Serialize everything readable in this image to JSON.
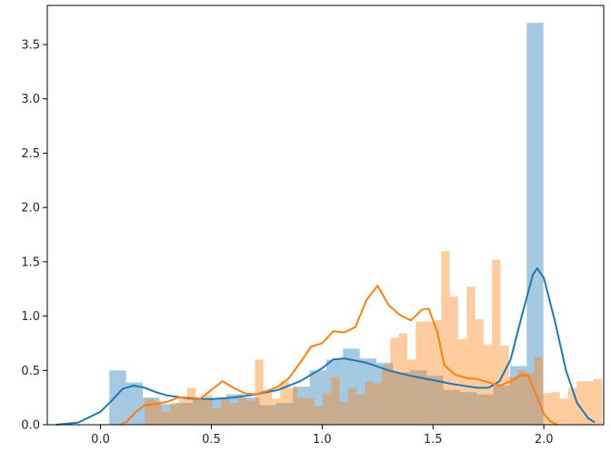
{
  "chart_data": {
    "type": "histogram+kde",
    "xlim": [
      -0.24,
      2.27
    ],
    "ylim": [
      0,
      3.86
    ],
    "x_ticks": [
      0.0,
      0.5,
      1.0,
      1.5,
      2.0
    ],
    "x_tick_labels": [
      "0.0",
      "0.5",
      "1.0",
      "1.5",
      "2.0"
    ],
    "y_ticks": [
      0.0,
      0.5,
      1.0,
      1.5,
      2.0,
      2.5,
      3.0,
      3.5
    ],
    "y_tick_labels": [
      "0.0",
      "0.5",
      "1.0",
      "1.5",
      "2.0",
      "2.5",
      "3.0",
      "3.5"
    ],
    "grid": false,
    "series": [
      {
        "color": "#1f77b4",
        "hist_alpha": 0.4,
        "bin_start": 0.04,
        "bin_width": 0.0753,
        "bin_heights": [
          0.5,
          0.39,
          0.25,
          0.19,
          0.2,
          0.23,
          0.24,
          0.28,
          0.25,
          0.18,
          0.2,
          0.35,
          0.5,
          0.6,
          0.7,
          0.61,
          0.57,
          0.48,
          0.5,
          0.45,
          0.32,
          0.3,
          0.28,
          0.36,
          0.54,
          3.7
        ],
        "kde": [
          [
            -0.2,
            0.0
          ],
          [
            -0.1,
            0.02
          ],
          [
            0.0,
            0.12
          ],
          [
            0.05,
            0.22
          ],
          [
            0.1,
            0.33
          ],
          [
            0.15,
            0.36
          ],
          [
            0.2,
            0.34
          ],
          [
            0.25,
            0.3
          ],
          [
            0.3,
            0.27
          ],
          [
            0.4,
            0.24
          ],
          [
            0.5,
            0.235
          ],
          [
            0.6,
            0.25
          ],
          [
            0.7,
            0.28
          ],
          [
            0.8,
            0.32
          ],
          [
            0.9,
            0.4
          ],
          [
            1.0,
            0.52
          ],
          [
            1.05,
            0.6
          ],
          [
            1.1,
            0.61
          ],
          [
            1.2,
            0.57
          ],
          [
            1.3,
            0.5
          ],
          [
            1.4,
            0.45
          ],
          [
            1.5,
            0.41
          ],
          [
            1.6,
            0.37
          ],
          [
            1.7,
            0.34
          ],
          [
            1.75,
            0.34
          ],
          [
            1.8,
            0.4
          ],
          [
            1.85,
            0.6
          ],
          [
            1.9,
            1.0
          ],
          [
            1.95,
            1.38
          ],
          [
            1.97,
            1.44
          ],
          [
            2.0,
            1.35
          ],
          [
            2.05,
            0.95
          ],
          [
            2.1,
            0.5
          ],
          [
            2.15,
            0.2
          ],
          [
            2.2,
            0.06
          ],
          [
            2.23,
            0.02
          ]
        ]
      },
      {
        "color": "#ff7f0e",
        "hist_alpha": 0.4,
        "bin_start": 0.2,
        "bin_width": 0.0382,
        "bin_heights": [
          0.24,
          0.22,
          0.12,
          0.2,
          0.24,
          0.34,
          0.23,
          0.27,
          0.15,
          0.24,
          0.2,
          0.25,
          0.22,
          0.6,
          0.3,
          0.24,
          0.4,
          0.34,
          0.25,
          0.24,
          0.17,
          0.29,
          0.44,
          0.21,
          0.34,
          0.28,
          0.4,
          0.38,
          0.55,
          0.8,
          0.84,
          0.6,
          0.95,
          0.95,
          0.96,
          1.6,
          1.18,
          0.79,
          1.27,
          0.97,
          0.74,
          1.52,
          0.73,
          0.44,
          0.5,
          0.48,
          0.62,
          0.29,
          0.3,
          0.24,
          0.34,
          0.4,
          0.4,
          0.42
        ],
        "kde": [
          [
            0.09,
            0.0
          ],
          [
            0.12,
            0.03
          ],
          [
            0.16,
            0.12
          ],
          [
            0.2,
            0.18
          ],
          [
            0.25,
            0.19
          ],
          [
            0.3,
            0.21
          ],
          [
            0.35,
            0.25
          ],
          [
            0.4,
            0.25
          ],
          [
            0.45,
            0.24
          ],
          [
            0.5,
            0.32
          ],
          [
            0.55,
            0.4
          ],
          [
            0.6,
            0.34
          ],
          [
            0.65,
            0.29
          ],
          [
            0.7,
            0.28
          ],
          [
            0.75,
            0.31
          ],
          [
            0.8,
            0.35
          ],
          [
            0.85,
            0.43
          ],
          [
            0.9,
            0.57
          ],
          [
            0.95,
            0.72
          ],
          [
            1.0,
            0.75
          ],
          [
            1.05,
            0.86
          ],
          [
            1.1,
            0.85
          ],
          [
            1.15,
            0.9
          ],
          [
            1.2,
            1.15
          ],
          [
            1.25,
            1.28
          ],
          [
            1.3,
            1.1
          ],
          [
            1.35,
            1.01
          ],
          [
            1.4,
            0.96
          ],
          [
            1.45,
            1.06
          ],
          [
            1.48,
            1.07
          ],
          [
            1.52,
            0.85
          ],
          [
            1.55,
            0.55
          ],
          [
            1.6,
            0.46
          ],
          [
            1.65,
            0.43
          ],
          [
            1.7,
            0.42
          ],
          [
            1.75,
            0.39
          ],
          [
            1.8,
            0.36
          ],
          [
            1.85,
            0.4
          ],
          [
            1.9,
            0.46
          ],
          [
            1.93,
            0.45
          ],
          [
            1.97,
            0.25
          ],
          [
            2.0,
            0.1
          ],
          [
            2.03,
            0.03
          ],
          [
            2.06,
            0.0
          ]
        ]
      }
    ]
  }
}
